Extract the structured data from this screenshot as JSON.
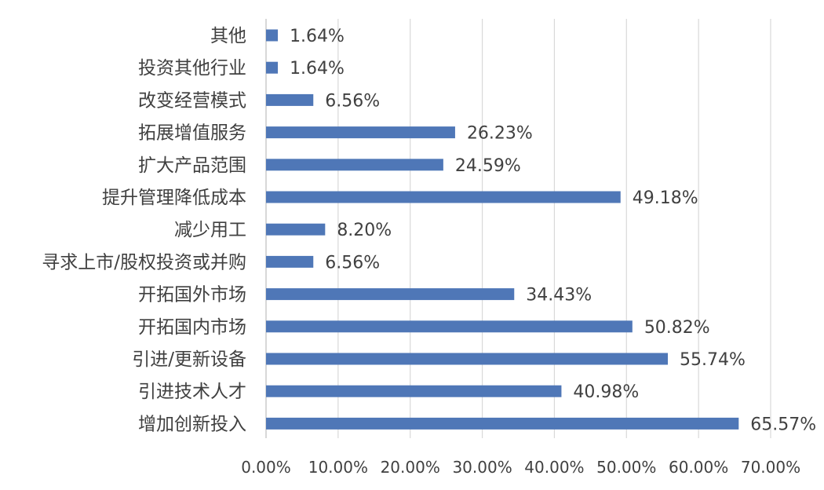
{
  "chart_data": {
    "type": "bar",
    "orientation": "horizontal",
    "categories": [
      "其他",
      "投资其他行业",
      "改变经营模式",
      "拓展增值服务",
      "扩大产品范围",
      "提升管理降低成本",
      "减少用工",
      "寻求上市/股权投资或并购",
      "开拓国外市场",
      "开拓国内市场",
      "引进/更新设备",
      "引进技术人才",
      "增加创新投入"
    ],
    "values": [
      1.64,
      1.64,
      6.56,
      26.23,
      24.59,
      49.18,
      8.2,
      6.56,
      34.43,
      50.82,
      55.74,
      40.98,
      65.57
    ],
    "data_labels": [
      "1.64%",
      "1.64%",
      "6.56%",
      "26.23%",
      "24.59%",
      "49.18%",
      "8.20%",
      "6.56%",
      "34.43%",
      "50.82%",
      "55.74%",
      "40.98%",
      "65.57%"
    ],
    "x_ticks": [
      0,
      10,
      20,
      30,
      40,
      50,
      60,
      70
    ],
    "x_tick_labels": [
      "0.00%",
      "10.00%",
      "20.00%",
      "30.00%",
      "40.00%",
      "50.00%",
      "60.00%",
      "70.00%"
    ],
    "xlim": [
      0,
      70
    ],
    "title": "",
    "xlabel": "",
    "ylabel": "",
    "grid": "vertical",
    "legend": "none",
    "bar_color": "#4f77b7",
    "grid_color": "#d9d9d9",
    "text_color": "#404040"
  }
}
